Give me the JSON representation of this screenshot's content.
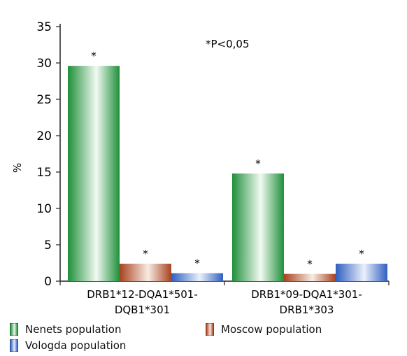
{
  "chart_data": {
    "type": "bar",
    "title": "",
    "annotation": "*P<0,05",
    "ylabel": "%",
    "xlabel": "",
    "ylim": [
      0,
      35
    ],
    "yticks": [
      0,
      5,
      10,
      15,
      20,
      25,
      30,
      35
    ],
    "categories": [
      [
        "DRB1*12-DQA1*501-",
        "DQB1*301"
      ],
      [
        "DRB1*09-DQA1*301-",
        "DRB1*303"
      ]
    ],
    "series": [
      {
        "name": "Nenets population",
        "values": [
          29.6,
          14.8
        ],
        "significance": [
          "*",
          "*"
        ],
        "color": "#1f8f3a"
      },
      {
        "name": "Moscow population",
        "values": [
          2.4,
          1.0
        ],
        "significance": [
          "*",
          "*"
        ],
        "color": "#a8421e"
      },
      {
        "name": "Vologda population",
        "values": [
          1.1,
          2.4
        ],
        "significance": [
          "*",
          "*"
        ],
        "color": "#2f5fc0"
      }
    ],
    "legend_position": "bottom",
    "grid": false
  },
  "legend": {
    "nenets": "Nenets population",
    "moscow": "Moscow population",
    "vologda": "Vologda population"
  }
}
